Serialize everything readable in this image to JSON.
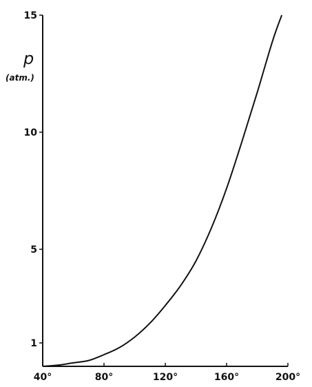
{
  "chart_data": {
    "type": "line",
    "title": "",
    "xlabel": "",
    "ylabel_symbol": "p",
    "ylabel_unit": "(atm.)",
    "xlim": [
      40,
      200
    ],
    "ylim": [
      0,
      15
    ],
    "x_ticks": [
      {
        "value": 40,
        "label": "40°"
      },
      {
        "value": 80,
        "label": "80°"
      },
      {
        "value": 120,
        "label": "120°"
      },
      {
        "value": 160,
        "label": "160°"
      },
      {
        "value": 200,
        "label": "200°"
      }
    ],
    "y_ticks": [
      {
        "value": 1,
        "label": "1"
      },
      {
        "value": 5,
        "label": "5"
      },
      {
        "value": 10,
        "label": "10"
      },
      {
        "value": 15,
        "label": "15"
      }
    ],
    "grid": false,
    "legend": "none",
    "series": [
      {
        "x": [
          40,
          50,
          60,
          70,
          80,
          90,
          100,
          110,
          120,
          130,
          140,
          150,
          160,
          170,
          180,
          190,
          196
        ],
        "y": [
          0.0,
          0.05,
          0.15,
          0.25,
          0.5,
          0.8,
          1.25,
          1.85,
          2.6,
          3.45,
          4.5,
          5.9,
          7.6,
          9.6,
          11.7,
          13.9,
          15.0
        ]
      }
    ]
  }
}
